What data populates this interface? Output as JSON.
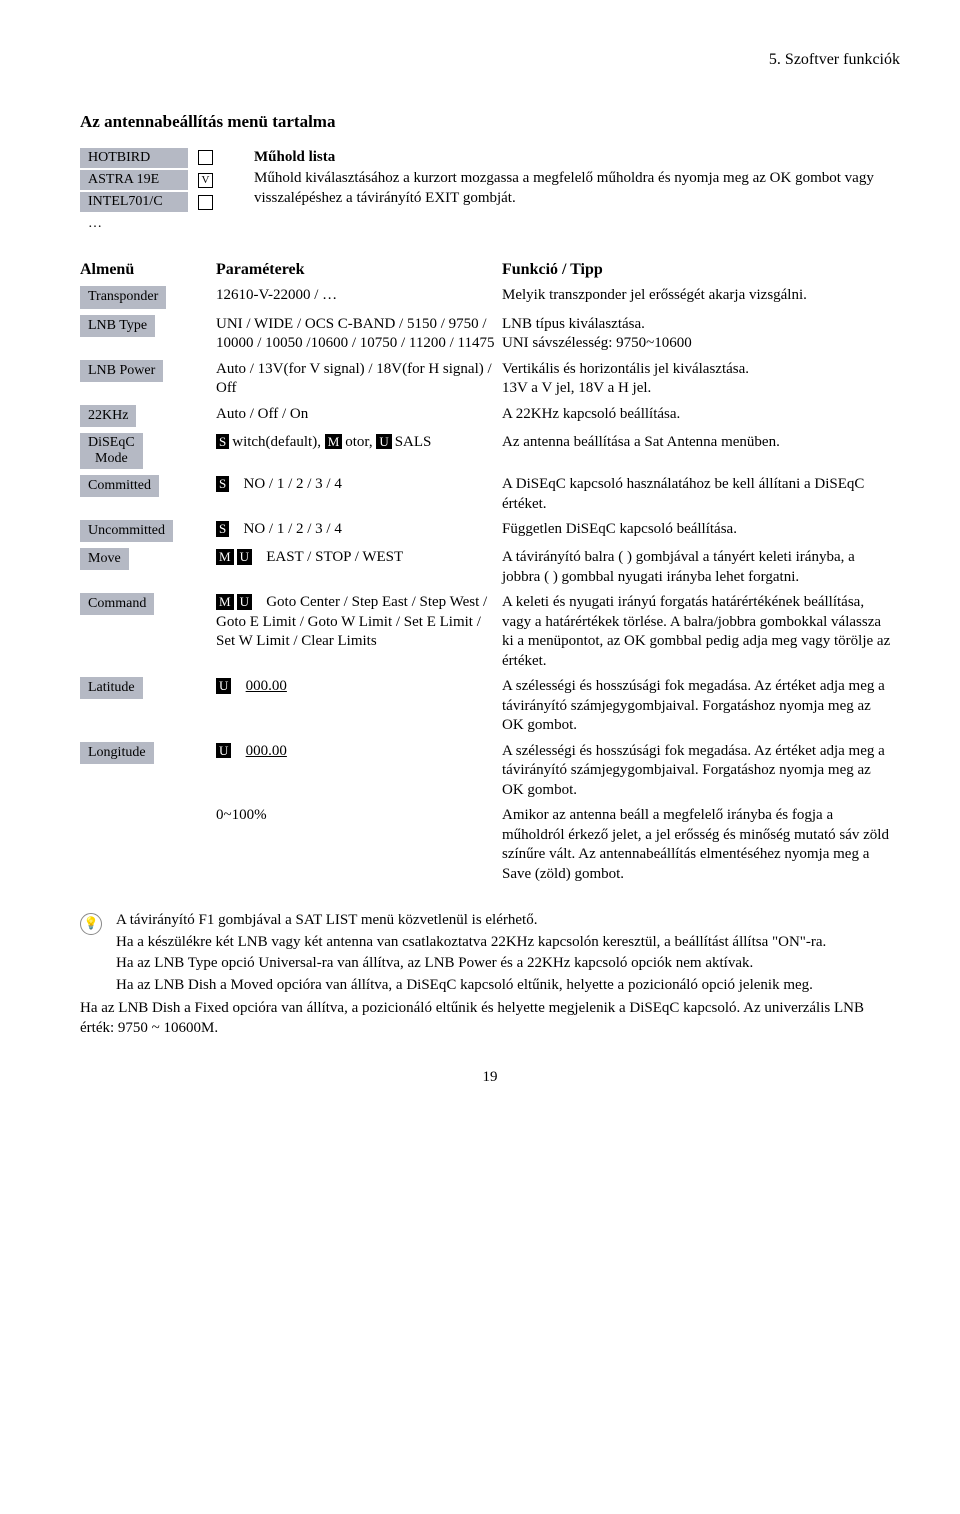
{
  "header": "5. Szoftver funkciók",
  "section_title": "Az antennabeállítás menü tartalma",
  "colors": {
    "pill_bg": "#b5b9c4",
    "prefix_bg": "#000000",
    "prefix_fg": "#ffffff"
  },
  "sat": {
    "items": [
      {
        "label": "HOTBIRD",
        "checked": false
      },
      {
        "label": "ASTRA 19E",
        "checked": true
      },
      {
        "label": "INTEL701/C",
        "checked": false
      }
    ],
    "ellipsis": "…",
    "desc_title": "Műhold lista",
    "desc_text": "Műhold kiválasztásához a kurzort mozgassa a megfelelő műholdra és nyomja meg az OK gombot vagy visszalépéshez a távirányító EXIT gombját."
  },
  "table": {
    "head": {
      "c1": "Almenü",
      "c2": "Paraméterek",
      "c3": "Funkció / Tipp"
    },
    "rows": [
      {
        "label": "Transponder",
        "param": "12610-V-22000 / …",
        "tip": "Melyik transzponder jel erősségét akarja vizsgálni."
      },
      {
        "label": "LNB Type",
        "param": "UNI / WIDE / OCS C-BAND / 5150 / 9750 / 10000 / 10050 /10600 / 10750 / 11200 / 11475",
        "tip": "LNB típus kiválasztása.\nUNI sávszélesség: 9750~10600"
      },
      {
        "label": "LNB Power",
        "param": "Auto / 13V(for V signal) / 18V(for H signal) / Off",
        "tip": "Vertikális és horizontális jel kiválasztása.\n13V a V jel, 18V a H jel."
      },
      {
        "label": "22KHz",
        "param": "Auto / Off / On",
        "tip": "A 22KHz kapcsoló beállítása."
      },
      {
        "label": "DiSEqC Mode",
        "two_line_label": true,
        "param_html": "diseqc_mode",
        "tip": "Az antenna beállítása a Sat Antenna menüben."
      },
      {
        "label": "Committed",
        "prefixes": [
          "S"
        ],
        "param": "   NO / 1 / 2 / 3 / 4",
        "tip": "A DiSEqC kapcsoló használatához be kell állítani a DiSEqC értéket."
      },
      {
        "label": "Uncommitted",
        "prefixes": [
          "S"
        ],
        "param": "   NO / 1 / 2 / 3 / 4",
        "tip": "Független DiSEqC kapcsoló beállítása."
      },
      {
        "label": "Move",
        "prefixes": [
          "M",
          "U"
        ],
        "param": "    EAST / STOP / WEST",
        "tip": "A távirányító balra ( ) gombjával a tányért keleti irányba, a jobbra ( ) gombbal nyugati irányba lehet forgatni."
      },
      {
        "label": "Command",
        "prefixes": [
          "M",
          "U"
        ],
        "param": "    Goto Center / Step East / Step West / Goto E Limit / Goto W Limit / Set E Limit / Set W Limit / Clear Limits",
        "tip": "A keleti és nyugati irányú forgatás határértékének beállítása, vagy a határértékek törlése. A balra/jobbra gombokkal válassza ki a menüpontot, az OK gombbal pedig adja meg vagy törölje az értéket."
      },
      {
        "label": "Latitude",
        "prefixes": [
          "U"
        ],
        "param_underline": "   000.00",
        "tip": "A szélességi és hosszúsági fok megadása. Az értéket adja meg a távirányító számjegygombjaival. Forgatáshoz nyomja meg az OK gombot."
      },
      {
        "label": "Longitude",
        "prefixes": [
          "U"
        ],
        "param_underline": "   000.00",
        "tip": "A szélességi és hosszúsági fok megadása. Az értéket adja meg a távirányító számjegygombjaival. Forgatáshoz nyomja meg az OK gombot."
      },
      {
        "label": "",
        "param": "0~100%",
        "tip": "Amikor az antenna beáll a megfelelő irányba és fogja a műholdról érkező jelet, a jel erősség és minőség mutató sáv zöld színűre vált. Az antennabeállítás elmentéséhez nyomja meg a Save (zöld) gombot."
      }
    ],
    "diseqc_parts": {
      "p1": "Switch(default), ",
      "m": "M",
      "p2": "otor, ",
      "u": "U",
      "p3": "SALS"
    }
  },
  "notes": [
    "A távirányító F1 gombjával a SAT LIST menü közvetlenül is elérhető.",
    "Ha a készülékre két LNB vagy két antenna van csatlakoztatva 22KHz kapcsolón keresztül, a beállítást állítsa \"ON\"-ra.",
    "Ha az LNB Type opció Universal-ra van állítva, az LNB Power és a 22KHz kapcsoló opciók nem aktívak.",
    "Ha az LNB Dish a Moved opcióra van állítva, a DiSEqC kapcsoló eltűnik, helyette a pozicionáló opció jelenik meg."
  ],
  "notes_noind": "Ha az LNB Dish a Fixed opcióra van állítva, a pozicionáló eltűnik és helyette megjelenik a DiSEqC kapcsoló. Az univerzális LNB érték: 9750 ~ 10600M.",
  "page_number": "19"
}
